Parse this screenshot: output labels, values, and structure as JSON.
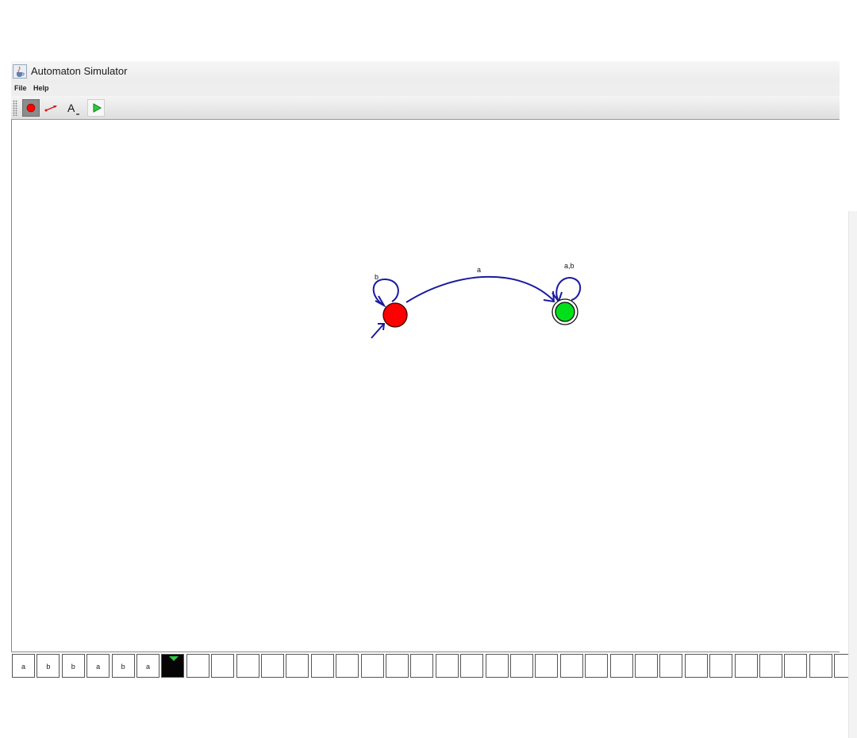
{
  "window": {
    "title": "Automaton Simulator",
    "icon": "java-cup-icon"
  },
  "menu": {
    "items": [
      "File",
      "Help"
    ]
  },
  "toolbar": {
    "tools": [
      {
        "name": "add-state-tool",
        "icon": "red-dot-icon",
        "selected": true
      },
      {
        "name": "add-transition-tool",
        "icon": "arrow-icon",
        "selected": false
      },
      {
        "name": "text-tool",
        "icon": "letter-a-icon",
        "glyph": "A",
        "selected": false
      },
      {
        "name": "run-tool",
        "icon": "play-icon",
        "selected": false
      }
    ]
  },
  "automaton": {
    "states": [
      {
        "id": "start",
        "color": "#ff0000",
        "initial": true,
        "accepting": false
      },
      {
        "id": "accept",
        "color": "#00e01a",
        "initial": false,
        "accepting": true
      }
    ],
    "transitions": [
      {
        "from": "start",
        "to": "start",
        "label": "b"
      },
      {
        "from": "start",
        "to": "accept",
        "label": "a"
      },
      {
        "from": "accept",
        "to": "accept",
        "label": "a,b"
      }
    ],
    "edge_color": "#1a1aa0"
  },
  "tape": {
    "symbols": [
      "a",
      "b",
      "b",
      "a",
      "b",
      "a",
      "",
      "",
      "",
      "",
      "",
      "",
      "",
      "",
      "",
      "",
      "",
      "",
      "",
      "",
      "",
      "",
      "",
      "",
      "",
      "",
      "",
      "",
      "",
      "",
      "",
      "",
      "",
      ""
    ],
    "head_position": 6,
    "head_color": "#2ecc40"
  }
}
